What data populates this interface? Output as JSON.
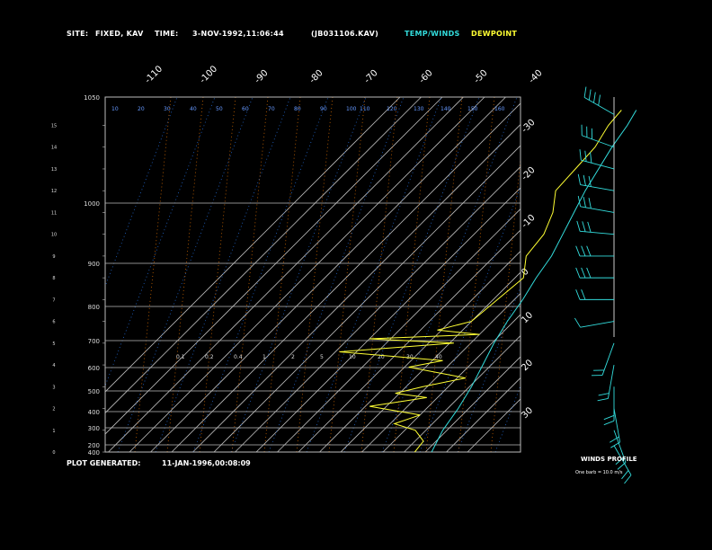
{
  "header": {
    "site_label": "SITE:",
    "site_value": "FIXED, KAV",
    "time_label": "TIME:",
    "time_value": "3-NOV-1992,11:06:44",
    "file_value": "(JB031106.KAV)",
    "legend_temp": "TEMP/WINDS",
    "legend_dew": "DEWPOINT"
  },
  "footer": {
    "generated_label": "PLOT GENERATED:",
    "generated_value": "11-JAN-1996,00:08:09",
    "winds_title": "WINDS PROFILE",
    "barb_note": "One barb = 10.0 m/s"
  },
  "colors": {
    "temp": "#33dddd",
    "dew": "#ffff33",
    "grid": "#bbbbbb",
    "mixing": "#cc6600",
    "adiabat": "#2266cc"
  },
  "chart_data": {
    "type": "line",
    "pressure_ticks": [
      "400",
      "200",
      "300",
      "400",
      "500",
      "600",
      "700",
      "800",
      "900",
      "1000",
      "1050"
    ],
    "height_ticks": [
      "0",
      "1",
      "2",
      "3",
      "4",
      "5",
      "6",
      "7",
      "8",
      "9",
      "10",
      "11",
      "12",
      "13",
      "14",
      "15"
    ],
    "temp_ticks_top": [
      "-110",
      "-100",
      "-90",
      "-80",
      "-70",
      "-60",
      "-50",
      "-40"
    ],
    "temp_ticks_right": [
      "-30",
      "-20",
      "-10",
      "0",
      "10",
      "20",
      "30"
    ],
    "adiabat_labels": [
      "10",
      "20",
      "30",
      "40",
      "50",
      "60",
      "70",
      "80",
      "90",
      "100",
      "110",
      "120",
      "130",
      "140",
      "150",
      "160"
    ],
    "mixing_labels": [
      "0.1",
      "0.2",
      "0.4",
      "1",
      "2",
      "5",
      "10",
      "20",
      "30",
      "40"
    ],
    "series": [
      {
        "key": "temp",
        "points": [
          [
            15.7,
            -2
          ],
          [
            15,
            1
          ],
          [
            14,
            4
          ],
          [
            13,
            8
          ],
          [
            12,
            12
          ],
          [
            11,
            17
          ],
          [
            10,
            22
          ],
          [
            9,
            27
          ],
          [
            8,
            30
          ],
          [
            7,
            34
          ],
          [
            6,
            37
          ],
          [
            5,
            41
          ],
          [
            4,
            46
          ],
          [
            3,
            51
          ],
          [
            2,
            55
          ],
          [
            1,
            58
          ],
          [
            0,
            63
          ]
        ]
      },
      {
        "key": "dew",
        "points": [
          [
            15.7,
            -9
          ],
          [
            15,
            -8
          ],
          [
            14,
            -4
          ],
          [
            13,
            -3
          ],
          [
            12,
            -2
          ],
          [
            11,
            7
          ],
          [
            10,
            13
          ],
          [
            9,
            15
          ],
          [
            8,
            24
          ],
          [
            7,
            22
          ],
          [
            6,
            20
          ],
          [
            5.6,
            8
          ],
          [
            5.4,
            30
          ],
          [
            5.2,
            -20
          ],
          [
            5.0,
            22
          ],
          [
            4.6,
            -28
          ],
          [
            4.2,
            25
          ],
          [
            3.9,
            12
          ],
          [
            3.4,
            44
          ],
          [
            3.0,
            28
          ],
          [
            2.7,
            18
          ],
          [
            2.5,
            35
          ],
          [
            2.1,
            12
          ],
          [
            1.7,
            40
          ],
          [
            1.3,
            32
          ],
          [
            1.0,
            45
          ],
          [
            0.5,
            54
          ],
          [
            0,
            55
          ]
        ]
      }
    ],
    "winds": [
      {
        "h": 15.5,
        "dir": 300,
        "barbs": 4
      },
      {
        "h": 14,
        "dir": 290,
        "barbs": 3
      },
      {
        "h": 13,
        "dir": 285,
        "barbs": 3
      },
      {
        "h": 12,
        "dir": 280,
        "barbs": 3
      },
      {
        "h": 11,
        "dir": 280,
        "barbs": 3
      },
      {
        "h": 10,
        "dir": 275,
        "barbs": 3
      },
      {
        "h": 9,
        "dir": 270,
        "barbs": 3
      },
      {
        "h": 8,
        "dir": 270,
        "barbs": 3
      },
      {
        "h": 7,
        "dir": 270,
        "barbs": 2
      },
      {
        "h": 6,
        "dir": 260,
        "barbs": 1
      },
      {
        "h": 5,
        "dir": 200,
        "barbs": 2
      },
      {
        "h": 4,
        "dir": 190,
        "barbs": 2
      },
      {
        "h": 3,
        "dir": 180,
        "barbs": 2
      },
      {
        "h": 2,
        "dir": 170,
        "barbs": 2
      },
      {
        "h": 1,
        "dir": 160,
        "barbs": 2
      },
      {
        "h": 0.3,
        "dir": 150,
        "barbs": 2
      }
    ]
  }
}
